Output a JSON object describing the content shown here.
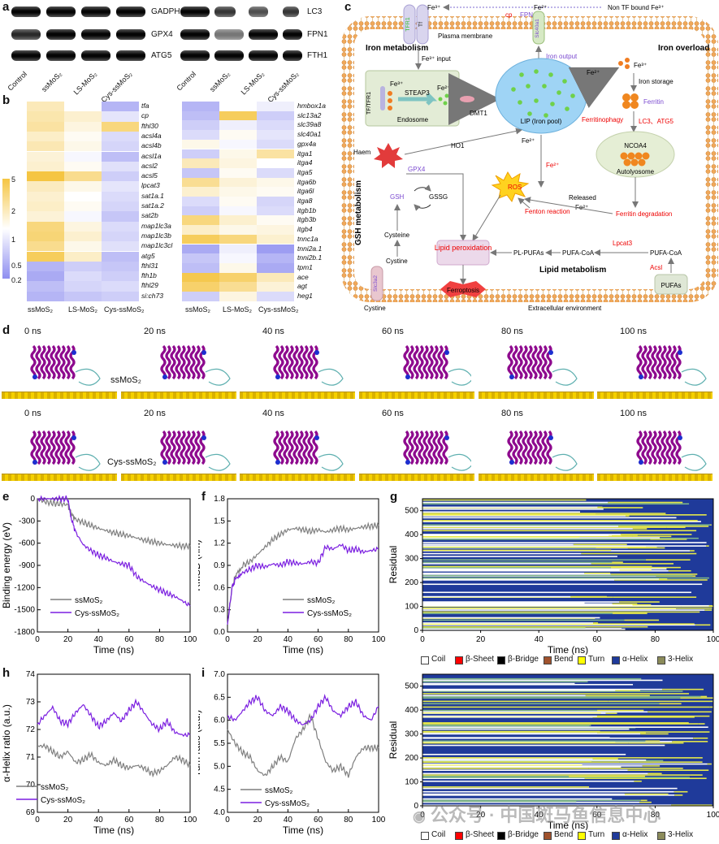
{
  "panels": {
    "a": "a",
    "b": "b",
    "c": "c",
    "d": "d",
    "e": "e",
    "f": "f",
    "g": "g",
    "h": "h",
    "i": "i"
  },
  "blot": {
    "genes_left": [
      "GADPH",
      "GPX4",
      "ATG5"
    ],
    "genes_right": [
      "LC3",
      "FPN1",
      "FTH1"
    ],
    "lanes": [
      "Control",
      "ssMoS₂",
      "LS-MoS₂",
      "Cys-ssMoS₂"
    ]
  },
  "heatmap": {
    "columns": [
      "ssMoS₂",
      "LS-MoS₂",
      "Cys-ssMoS₂"
    ],
    "scale_ticks": [
      "5",
      "2",
      "1",
      "0.5",
      "0.2"
    ],
    "left_genes": [
      "tfa",
      "cp",
      "fthl30",
      "acsl4a",
      "acsl4b",
      "acsl1a",
      "acsl2",
      "acsl5",
      "lpcat3",
      "sat1a.1",
      "sat1a.2",
      "sat2b",
      "map1lc3a",
      "map1lc3b",
      "map1lc3cl",
      "atg5",
      "fthl31",
      "fth1b",
      "fthl29",
      "si:ch73"
    ],
    "right_genes": [
      "hmbox1a",
      "slc13a2",
      "slc39a8",
      "slc40a1",
      "gpx4a",
      "itga1",
      "itga4",
      "itga5",
      "itga6b",
      "itga6l",
      "itga8",
      "itgb1b",
      "itgb3b",
      "itgb4",
      "tnnc1a",
      "tnni2a.1",
      "tnni2b.1",
      "tpm1",
      "ace",
      "agt",
      "heg1"
    ],
    "left_values": [
      [
        1.8,
        1,
        0.35
      ],
      [
        2,
        1.5,
        0.7
      ],
      [
        2.2,
        1.3,
        3
      ],
      [
        1.6,
        1.1,
        0.6
      ],
      [
        1.9,
        1.2,
        0.55
      ],
      [
        1.4,
        0.9,
        0.4
      ],
      [
        1.5,
        1.1,
        0.65
      ],
      [
        5,
        2.6,
        0.5
      ],
      [
        1.7,
        1.2,
        0.7
      ],
      [
        1.5,
        1,
        0.6
      ],
      [
        1.6,
        1.1,
        0.55
      ],
      [
        1.4,
        0.9,
        0.45
      ],
      [
        3,
        1.3,
        0.6
      ],
      [
        3.2,
        1.5,
        0.55
      ],
      [
        2.6,
        1.2,
        0.65
      ],
      [
        4,
        1.6,
        0.4
      ],
      [
        0.35,
        0.5,
        0.45
      ],
      [
        0.3,
        0.6,
        0.5
      ],
      [
        0.4,
        0.55,
        0.6
      ],
      [
        0.35,
        0.45,
        0.5
      ]
    ],
    "right_values": [
      [
        0.35,
        1,
        0.8
      ],
      [
        0.4,
        4,
        0.5
      ],
      [
        0.5,
        0.8,
        0.6
      ],
      [
        0.6,
        1.1,
        0.7
      ],
      [
        1.2,
        0.9,
        0.6
      ],
      [
        0.5,
        1.2,
        2.2
      ],
      [
        1.8,
        1.3,
        1
      ],
      [
        0.45,
        1.1,
        0.6
      ],
      [
        2.5,
        1.4,
        1.2
      ],
      [
        1.5,
        1.2,
        1.1
      ],
      [
        0.6,
        1.1,
        0.55
      ],
      [
        0.5,
        0.9,
        0.6
      ],
      [
        3,
        1.5,
        1.1
      ],
      [
        1.6,
        1.2,
        1.3
      ],
      [
        4,
        3,
        1.5
      ],
      [
        0.3,
        0.8,
        0.25
      ],
      [
        0.45,
        0.9,
        0.35
      ],
      [
        0.4,
        1.2,
        0.3
      ],
      [
        4.5,
        3.5,
        1.8
      ],
      [
        3.5,
        2.5,
        1.4
      ],
      [
        0.5,
        1.3,
        0.6
      ]
    ]
  },
  "pathway": {
    "fe3_top": "Fe³⁺",
    "tfr1": "TFR1",
    "tf": "Tf",
    "fe2_top": "Fe²⁺",
    "non_tf": "Non TF bound Fe³⁺",
    "cp": "cp",
    "fpn": "FPN",
    "slc40a1": "Slc40a1",
    "plasma_membrane": "Plasma membrane",
    "iron_metabolism": "Iron metabolism",
    "fe3_input": "Fe³⁺ input",
    "iron_output": "Iron output",
    "tf_tfr1": "TF/TFR1",
    "fe3_endo": "Fe³⁺",
    "steap3": "STEAP3",
    "fe2_endo": "Fe²⁺",
    "endosome": "Endosome",
    "dmt1": "DMT1",
    "lip": "LIP (Iron pool)",
    "fe2_overload": "Fe²⁺",
    "fe3_overload": "Fe³⁺",
    "iron_overload": "Iron overload",
    "iron_storage": "Iron storage",
    "ferritin": "Ferritin",
    "ferritinophagy": "Ferritinophagy",
    "lc3_atg5": "LC3、ATG5",
    "ncoa4": "NCOA4",
    "autolysosome": "Autolyosome",
    "haem": "Haem",
    "ho1": "HO1",
    "fe2_ho1": "Fe²⁺",
    "fe2_fenton": "Fe²⁺",
    "gsh_metabolism": "GSH metabolism",
    "gpx4": "GPX4",
    "gsh": "GSH",
    "gssg": "GSSG",
    "ros": "ROS",
    "fenton": "Fenton reaction",
    "released": "Released",
    "released_fe": "Fe²⁺",
    "ferritin_degradation": "Ferritin degradation",
    "cysteine": "Cysteine",
    "cystine_in": "Cystine",
    "lipid_peroxidation": "Lipid peroxidation",
    "pl_pufas": "PL-PUFAs",
    "pufa_coa_1": "PUFA-CoA",
    "pufa_coa_2": "PUFA-CoA",
    "lpcat3": "Lpcat3",
    "acsl": "Acsl",
    "lipid_metabolism": "Lipid metabolism",
    "slc3a2": "Slc3a2",
    "ferroptosis": "Ferroptosis",
    "pufas": "PUFAs",
    "cystine_out": "Cystine",
    "extracellular": "Extracellular environment"
  },
  "md": {
    "times": [
      "0 ns",
      "20 ns",
      "40 ns",
      "60 ns",
      "80 ns",
      "100 ns"
    ],
    "row1_label": "ssMoS₂",
    "row2_label": "Cys-ssMoS₂"
  },
  "chart_data": [
    {
      "panel": "e",
      "type": "line",
      "xlabel": "Time (ns)",
      "ylabel": "Binding energy (eV)",
      "xlim": [
        0,
        100
      ],
      "ylim": [
        -1800,
        0
      ],
      "xticks": [
        "0",
        "20",
        "40",
        "60",
        "80",
        "100"
      ],
      "yticks": [
        "0",
        "-300",
        "-600",
        "-900",
        "-1200",
        "-1500",
        "-1800"
      ],
      "series": [
        {
          "name": "ssMoS₂",
          "color": "#7f7f7f",
          "x": [
            0,
            5,
            10,
            15,
            20,
            22,
            25,
            30,
            35,
            40,
            45,
            50,
            55,
            60,
            65,
            70,
            75,
            80,
            85,
            90,
            95,
            100
          ],
          "y": [
            -10,
            -40,
            -60,
            -70,
            -80,
            -200,
            -280,
            -320,
            -360,
            -400,
            -430,
            -460,
            -480,
            -500,
            -530,
            -560,
            -580,
            -600,
            -620,
            -630,
            -640,
            -640
          ]
        },
        {
          "name": "Cys-ssMoS₂",
          "color": "#7b1fe0",
          "x": [
            0,
            5,
            10,
            15,
            20,
            22,
            25,
            30,
            35,
            40,
            45,
            50,
            55,
            60,
            65,
            70,
            75,
            80,
            85,
            90,
            95,
            100
          ],
          "y": [
            0,
            0,
            0,
            0,
            0,
            -250,
            -450,
            -620,
            -700,
            -760,
            -800,
            -850,
            -880,
            -900,
            -1050,
            -1120,
            -1180,
            -1230,
            -1280,
            -1320,
            -1380,
            -1450
          ]
        }
      ]
    },
    {
      "panel": "f",
      "type": "line",
      "xlabel": "Time (ns)",
      "ylabel": "RMSD (nm)",
      "xlim": [
        0,
        100
      ],
      "ylim": [
        0,
        1.8
      ],
      "xticks": [
        "0",
        "20",
        "40",
        "60",
        "80",
        "100"
      ],
      "yticks": [
        "0.0",
        "0.3",
        "0.6",
        "0.9",
        "1.2",
        "1.5",
        "1.8"
      ],
      "series": [
        {
          "name": "ssMoS₂",
          "color": "#7f7f7f",
          "x": [
            0,
            3,
            6,
            10,
            15,
            20,
            25,
            30,
            35,
            40,
            45,
            50,
            55,
            60,
            65,
            70,
            75,
            80,
            85,
            90,
            95,
            100
          ],
          "y": [
            0.1,
            0.6,
            0.8,
            0.9,
            0.95,
            1.05,
            1.15,
            1.25,
            1.32,
            1.38,
            1.4,
            1.38,
            1.36,
            1.38,
            1.35,
            1.38,
            1.4,
            1.38,
            1.4,
            1.42,
            1.43,
            1.44
          ]
        },
        {
          "name": "Cys-ssMoS₂",
          "color": "#7b1fe0",
          "x": [
            0,
            3,
            6,
            10,
            15,
            20,
            25,
            30,
            35,
            40,
            45,
            50,
            55,
            60,
            65,
            70,
            75,
            80,
            85,
            90,
            95,
            100
          ],
          "y": [
            0.1,
            0.6,
            0.75,
            0.8,
            0.85,
            0.9,
            0.88,
            0.92,
            0.9,
            0.95,
            0.93,
            0.92,
            0.95,
            0.93,
            1.15,
            1.12,
            1.18,
            1.1,
            1.12,
            1.08,
            1.1,
            1.12
          ]
        }
      ]
    },
    {
      "panel": "g",
      "type": "heatmap",
      "xlabel": "Time (ns)",
      "ylabel": "Residual",
      "xlim": [
        0,
        100
      ],
      "ylim": [
        0,
        550
      ],
      "xticks": [
        "0",
        "20",
        "40",
        "60",
        "80",
        "100"
      ],
      "yticks": [
        "0",
        "100",
        "200",
        "300",
        "400",
        "500"
      ],
      "legend": [
        "Coil",
        "β-Sheet",
        "β-Bridge",
        "Bend",
        "Turn",
        "α-Helix",
        "3-Helix"
      ],
      "legend_colors": [
        "#ffffff",
        "#ff0000",
        "#000000",
        "#a0522d",
        "#ffff00",
        "#1f3a9a",
        "#8b8b5a"
      ]
    },
    {
      "panel": "h",
      "type": "line",
      "xlabel": "Time (ns)",
      "ylabel": "α-Helix ratio (a.u.)",
      "xlim": [
        0,
        100
      ],
      "ylim": [
        69,
        74
      ],
      "xticks": [
        "0",
        "20",
        "40",
        "60",
        "80",
        "100"
      ],
      "yticks": [
        "69",
        "70",
        "71",
        "72",
        "73",
        "74"
      ],
      "series": [
        {
          "name": "ssMoS₂",
          "color": "#7f7f7f",
          "x": [
            0,
            5,
            10,
            15,
            20,
            25,
            30,
            35,
            40,
            45,
            50,
            55,
            60,
            65,
            70,
            75,
            80,
            85,
            90,
            95,
            100
          ],
          "y": [
            71.4,
            71.4,
            71.2,
            71.0,
            71.2,
            70.8,
            70.9,
            71.1,
            70.8,
            70.7,
            70.9,
            70.7,
            70.6,
            70.7,
            70.6,
            70.4,
            70.5,
            70.7,
            71.0,
            70.9,
            70.7
          ]
        },
        {
          "name": "Cys-ssMoS₂",
          "color": "#7b1fe0",
          "x": [
            0,
            5,
            10,
            15,
            20,
            25,
            30,
            35,
            40,
            45,
            50,
            55,
            60,
            65,
            70,
            75,
            80,
            85,
            90,
            95,
            100
          ],
          "y": [
            72.2,
            72.5,
            72.8,
            72.3,
            72.2,
            72.6,
            72.9,
            72.5,
            72.1,
            72.3,
            72.6,
            72.3,
            72.7,
            73.0,
            72.6,
            72.2,
            72.0,
            72.3,
            71.9,
            71.8,
            71.8
          ]
        }
      ]
    },
    {
      "panel": "i",
      "type": "line",
      "xlabel": "Time (ns)",
      "ylabel": "Turn ratio (a.u.)",
      "xlim": [
        0,
        100
      ],
      "ylim": [
        4,
        7
      ],
      "xticks": [
        "0",
        "20",
        "40",
        "60",
        "80",
        "100"
      ],
      "yticks": [
        "4.0",
        "4.5",
        "5.0",
        "5.5",
        "6.0",
        "6.5",
        "7.0"
      ],
      "series": [
        {
          "name": "ssMoS₂",
          "color": "#7f7f7f",
          "x": [
            0,
            5,
            10,
            15,
            20,
            25,
            30,
            35,
            40,
            45,
            50,
            55,
            60,
            65,
            70,
            75,
            80,
            85,
            90,
            95,
            100
          ],
          "y": [
            5.8,
            5.5,
            5.3,
            5.2,
            4.9,
            4.8,
            5.0,
            5.2,
            5.1,
            5.6,
            5.8,
            6.1,
            5.6,
            5.1,
            4.9,
            5.0,
            4.8,
            5.2,
            5.4,
            5.4,
            5.4
          ]
        },
        {
          "name": "Cys-ssMoS₂",
          "color": "#7b1fe0",
          "x": [
            0,
            5,
            10,
            15,
            20,
            25,
            30,
            35,
            40,
            45,
            50,
            55,
            60,
            65,
            70,
            75,
            80,
            85,
            90,
            95,
            100
          ],
          "y": [
            6.1,
            6.0,
            6.2,
            6.4,
            6.5,
            6.2,
            6.1,
            6.3,
            6.2,
            6.0,
            5.9,
            6.0,
            6.3,
            6.5,
            6.2,
            6.1,
            6.3,
            6.4,
            6.1,
            6.0,
            6.3
          ]
        }
      ]
    }
  ],
  "watermark": "公众号 · 中国斑马鱼信息中心"
}
